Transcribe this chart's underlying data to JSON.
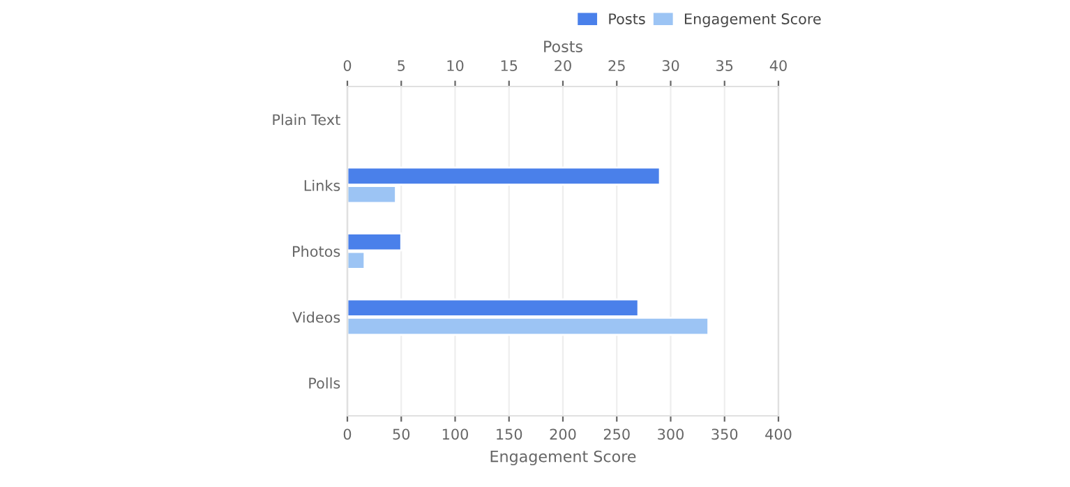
{
  "chart_data": {
    "type": "bar",
    "orientation": "horizontal",
    "categories": [
      "Plain Text",
      "Links",
      "Photos",
      "Videos",
      "Polls"
    ],
    "series": [
      {
        "name": "Posts",
        "color": "#4a80ea",
        "values": [
          null,
          29,
          5,
          27,
          null
        ],
        "axis": "x2"
      },
      {
        "name": "Engagement Score",
        "color": "#9cc4f4",
        "values": [
          null,
          45,
          16,
          335,
          null
        ]
      }
    ],
    "xlabel": "Engagement Score",
    "x2label": "Posts",
    "xlim": [
      0,
      400
    ],
    "xticks": [
      0,
      50,
      100,
      150,
      200,
      250,
      300,
      350,
      400
    ],
    "x2lim": [
      0,
      40
    ],
    "x2ticks": [
      0,
      5,
      10,
      15,
      20,
      25,
      30,
      35,
      40
    ],
    "grid": "x",
    "legend": "top right"
  }
}
